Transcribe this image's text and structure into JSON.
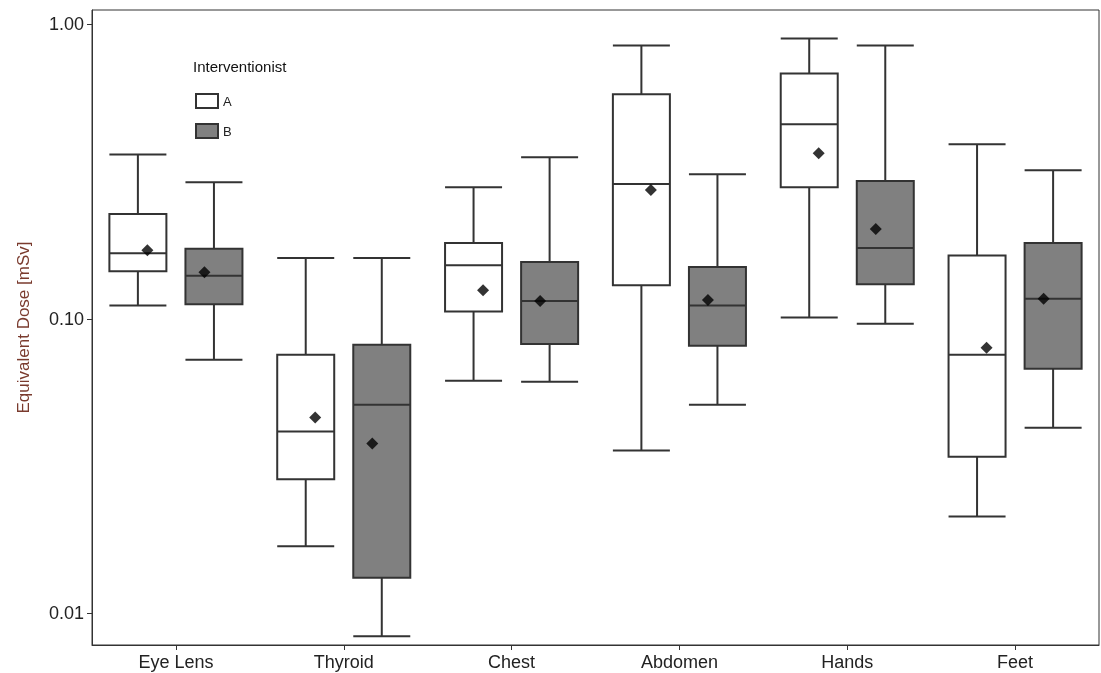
{
  "chart_data": {
    "type": "box",
    "ylabel": "Equivalent Dose [mSv]",
    "legend_title": "Interventionist",
    "categories": [
      "Eye Lens",
      "Thyroid",
      "Chest",
      "Abdomen",
      "Hands",
      "Feet"
    ],
    "log": "y",
    "ylim": [
      0.0078,
      1.12
    ],
    "yticks": [
      0.01,
      {
        "value": 0.1,
        "label": "0.10"
      },
      {
        "value": 1,
        "label": "1.00"
      }
    ],
    "grid": false,
    "legend": "top left",
    "marker": "diamond",
    "series": [
      {
        "name": "A",
        "color": "#ffffff",
        "boxes": [
          {
            "low": 0.111,
            "q1": 0.145,
            "median": 0.167,
            "q3": 0.227,
            "high": 0.362,
            "mean": 0.171
          },
          {
            "low": 0.0169,
            "q1": 0.0285,
            "median": 0.0414,
            "q3": 0.0755,
            "high": 0.161,
            "mean": 0.0462
          },
          {
            "low": 0.0616,
            "q1": 0.106,
            "median": 0.152,
            "q3": 0.181,
            "high": 0.28,
            "mean": 0.125
          },
          {
            "low": 0.0357,
            "q1": 0.13,
            "median": 0.287,
            "q3": 0.579,
            "high": 0.849,
            "mean": 0.274
          },
          {
            "low": 0.101,
            "q1": 0.28,
            "median": 0.458,
            "q3": 0.682,
            "high": 0.897,
            "mean": 0.365
          },
          {
            "low": 0.0213,
            "q1": 0.034,
            "median": 0.0755,
            "q3": 0.164,
            "high": 0.392,
            "mean": 0.0797
          }
        ]
      },
      {
        "name": "B",
        "color": "#808080",
        "boxes": [
          {
            "low": 0.0726,
            "q1": 0.112,
            "median": 0.14,
            "q3": 0.173,
            "high": 0.291,
            "mean": 0.144
          },
          {
            "low": 0.00836,
            "q1": 0.0132,
            "median": 0.0511,
            "q3": 0.0816,
            "high": 0.161,
            "mean": 0.0377
          },
          {
            "low": 0.0611,
            "q1": 0.0822,
            "median": 0.115,
            "q3": 0.156,
            "high": 0.354,
            "mean": 0.115
          },
          {
            "low": 0.0511,
            "q1": 0.081,
            "median": 0.111,
            "q3": 0.15,
            "high": 0.31,
            "mean": 0.116
          },
          {
            "low": 0.0962,
            "q1": 0.131,
            "median": 0.174,
            "q3": 0.294,
            "high": 0.849,
            "mean": 0.202
          },
          {
            "low": 0.0427,
            "q1": 0.0677,
            "median": 0.117,
            "q3": 0.181,
            "high": 0.32,
            "mean": 0.117
          }
        ]
      }
    ]
  }
}
